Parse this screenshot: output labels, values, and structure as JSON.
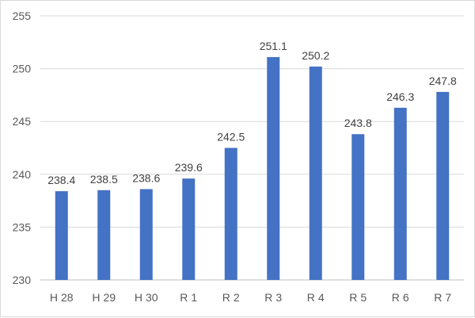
{
  "chart_data": {
    "type": "bar",
    "categories": [
      "H28",
      "H29",
      "H30",
      "R1",
      "R2",
      "R3",
      "R4",
      "R5",
      "R6",
      "R7"
    ],
    "category_labels": [
      {
        "letter": "H",
        "num": "28"
      },
      {
        "letter": "H",
        "num": "29"
      },
      {
        "letter": "H",
        "num": "30"
      },
      {
        "letter": "R",
        "num": "1"
      },
      {
        "letter": "R",
        "num": "2"
      },
      {
        "letter": "R",
        "num": "3"
      },
      {
        "letter": "R",
        "num": "4"
      },
      {
        "letter": "R",
        "num": "5"
      },
      {
        "letter": "R",
        "num": "6"
      },
      {
        "letter": "R",
        "num": "7"
      }
    ],
    "values": [
      238.4,
      238.5,
      238.6,
      239.6,
      242.5,
      251.1,
      250.2,
      243.8,
      246.3,
      247.8
    ],
    "data_labels": [
      "238.4",
      "238.5",
      "238.6",
      "239.6",
      "242.5",
      "251.1",
      "250.2",
      "243.8",
      "246.3",
      "247.8"
    ],
    "y_ticks": [
      "230",
      "235",
      "240",
      "245",
      "250",
      "255"
    ],
    "ylim": [
      230,
      255
    ],
    "title": "",
    "xlabel": "",
    "ylabel": "",
    "grid": true,
    "legend": "none",
    "colors": {
      "bar": "#4472c4",
      "grid": "#d9d9d9",
      "axis": "#bfbfbf"
    }
  }
}
